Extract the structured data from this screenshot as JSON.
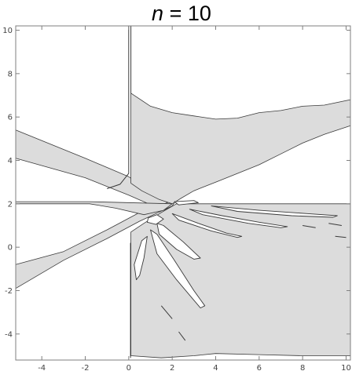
{
  "title": {
    "variable": "n",
    "equals": "=",
    "value": "10"
  },
  "colors": {
    "fill": "#dcdcdc",
    "edge": "#3a3a3a",
    "frame": "#7f7f7f",
    "tick_text": "#444444"
  },
  "chart_data": {
    "type": "region",
    "title": "n = 10",
    "xlabel": "",
    "ylabel": "",
    "xlim": [
      -5.2,
      10.2
    ],
    "ylim": [
      -5.2,
      10.2
    ],
    "xticks": [
      -4,
      -2,
      0,
      2,
      4,
      6,
      8,
      10
    ],
    "yticks": [
      -4,
      -2,
      0,
      2,
      4,
      6,
      8,
      10
    ],
    "grid": false,
    "legend": "none",
    "regions": [
      {
        "name": "upper-left-band",
        "points": [
          [
            -5.2,
            5.4
          ],
          [
            -2,
            4.1
          ],
          [
            0,
            3.25
          ],
          [
            1.5,
            2.25
          ],
          [
            2,
            1.9
          ],
          [
            1.6,
            1.7
          ],
          [
            0,
            2.4
          ],
          [
            -2,
            3.2
          ],
          [
            -5.2,
            4.1
          ]
        ]
      },
      {
        "name": "lower-left-diagonal-band",
        "points": [
          [
            -5.2,
            -1.9
          ],
          [
            -3,
            -0.6
          ],
          [
            -1,
            0.4
          ],
          [
            0.5,
            1.2
          ],
          [
            2,
            1.9
          ],
          [
            2.2,
            2.2
          ],
          [
            0.5,
            1.6
          ],
          [
            -1,
            0.8
          ],
          [
            -3,
            -0.2
          ],
          [
            -5.2,
            -0.8
          ]
        ]
      },
      {
        "name": "left-horizontal-band",
        "points": [
          [
            -5.2,
            2.0
          ],
          [
            -1.8,
            2.0
          ],
          [
            -0.6,
            1.8
          ],
          [
            0.7,
            1.5
          ],
          [
            1.6,
            1.7
          ],
          [
            2.0,
            2.0
          ],
          [
            -1.8,
            2.1
          ],
          [
            -5.2,
            2.1
          ]
        ]
      },
      {
        "name": "upper-center-region",
        "points": [
          [
            0.1,
            7.1
          ],
          [
            1,
            6.5
          ],
          [
            2,
            6.2
          ],
          [
            3,
            6.05
          ],
          [
            4,
            5.9
          ],
          [
            5,
            5.95
          ],
          [
            6,
            6.2
          ],
          [
            7,
            6.3
          ],
          [
            8,
            6.5
          ],
          [
            9,
            6.55
          ],
          [
            10.2,
            6.8
          ],
          [
            10.2,
            5.6
          ],
          [
            9,
            5.2
          ],
          [
            8,
            4.8
          ],
          [
            7,
            4.3
          ],
          [
            6,
            3.8
          ],
          [
            5,
            3.4
          ],
          [
            4,
            3.0
          ],
          [
            3,
            2.6
          ],
          [
            2.4,
            2.25
          ],
          [
            2,
            2.0
          ],
          [
            1.4,
            2.2
          ],
          [
            0.6,
            2.6
          ],
          [
            0.1,
            2.95
          ]
        ]
      },
      {
        "name": "lower-right-region",
        "points": [
          [
            0.1,
            0.7
          ],
          [
            0.7,
            1.1
          ],
          [
            1.5,
            1.6
          ],
          [
            2.2,
            2.0
          ],
          [
            10.2,
            2.0
          ],
          [
            10.2,
            -5.0
          ],
          [
            8,
            -5.0
          ],
          [
            6,
            -4.95
          ],
          [
            4,
            -4.9
          ],
          [
            3,
            -5.0
          ],
          [
            1.5,
            -5.1
          ],
          [
            0.1,
            -5.0
          ]
        ]
      }
    ],
    "holes": [
      {
        "name": "finger-1",
        "points": [
          [
            0.6,
            0.3
          ],
          [
            0.85,
            0.5
          ],
          [
            0.7,
            -0.5
          ],
          [
            0.5,
            -1.3
          ],
          [
            0.35,
            -1.5
          ],
          [
            0.25,
            -0.8
          ]
        ]
      },
      {
        "name": "finger-2",
        "points": [
          [
            1.0,
            0.8
          ],
          [
            1.3,
            0.6
          ],
          [
            2.1,
            -0.6
          ],
          [
            3.0,
            -2.0
          ],
          [
            3.5,
            -2.7
          ],
          [
            3.3,
            -2.8
          ],
          [
            2.2,
            -1.5
          ],
          [
            1.3,
            -0.3
          ]
        ]
      },
      {
        "name": "finger-3",
        "points": [
          [
            1.3,
            1.1
          ],
          [
            1.6,
            1.0
          ],
          [
            2.5,
            0.25
          ],
          [
            3.3,
            -0.5
          ],
          [
            3.0,
            -0.55
          ],
          [
            2.2,
            -0.1
          ],
          [
            1.4,
            0.6
          ]
        ]
      },
      {
        "name": "finger-4",
        "points": [
          [
            2.0,
            1.55
          ],
          [
            3.2,
            1.1
          ],
          [
            4.5,
            0.65
          ],
          [
            5.2,
            0.5
          ],
          [
            5.0,
            0.45
          ],
          [
            3.8,
            0.75
          ],
          [
            2.3,
            1.25
          ]
        ]
      },
      {
        "name": "finger-5",
        "points": [
          [
            2.8,
            1.75
          ],
          [
            4.3,
            1.45
          ],
          [
            6.0,
            1.15
          ],
          [
            7.3,
            0.95
          ],
          [
            7.0,
            0.9
          ],
          [
            5.5,
            1.1
          ],
          [
            3.4,
            1.5
          ]
        ]
      },
      {
        "name": "finger-6",
        "points": [
          [
            3.8,
            1.9
          ],
          [
            6.0,
            1.7
          ],
          [
            8.2,
            1.55
          ],
          [
            9.6,
            1.45
          ],
          [
            9.4,
            1.38
          ],
          [
            7.5,
            1.45
          ],
          [
            5.0,
            1.65
          ]
        ]
      },
      {
        "name": "small-near-origin",
        "points": [
          [
            0.9,
            1.35
          ],
          [
            1.3,
            1.5
          ],
          [
            1.6,
            1.3
          ],
          [
            1.25,
            1.05
          ],
          [
            0.85,
            1.15
          ]
        ]
      },
      {
        "name": "near-center-slit",
        "points": [
          [
            2.1,
            2.1
          ],
          [
            3.0,
            2.15
          ],
          [
            3.2,
            2.05
          ],
          [
            2.3,
            1.95
          ]
        ]
      }
    ],
    "curves": [
      {
        "name": "vertical-boundary-upper",
        "points": [
          [
            0.1,
            10.2
          ],
          [
            0.1,
            7.1
          ]
        ]
      },
      {
        "name": "vertical-boundary-left",
        "points": [
          [
            0,
            10.2
          ],
          [
            0,
            3.4
          ],
          [
            -0.4,
            2.9
          ],
          [
            -1.0,
            2.7
          ]
        ]
      },
      {
        "name": "vertical-boundary-lower",
        "points": [
          [
            0.08,
            0.2
          ],
          [
            0.08,
            -5.1
          ]
        ]
      },
      {
        "name": "dash-1",
        "points": [
          [
            1.5,
            -2.7
          ],
          [
            2.0,
            -3.3
          ]
        ]
      },
      {
        "name": "dash-2",
        "points": [
          [
            2.3,
            -3.9
          ],
          [
            2.6,
            -4.3
          ]
        ]
      },
      {
        "name": "dash-3",
        "points": [
          [
            8.0,
            1.0
          ],
          [
            8.6,
            0.9
          ]
        ]
      },
      {
        "name": "dash-4",
        "points": [
          [
            9.2,
            1.1
          ],
          [
            9.8,
            1.0
          ]
        ]
      },
      {
        "name": "dash-5",
        "points": [
          [
            9.5,
            0.5
          ],
          [
            10.0,
            0.45
          ]
        ]
      }
    ]
  }
}
